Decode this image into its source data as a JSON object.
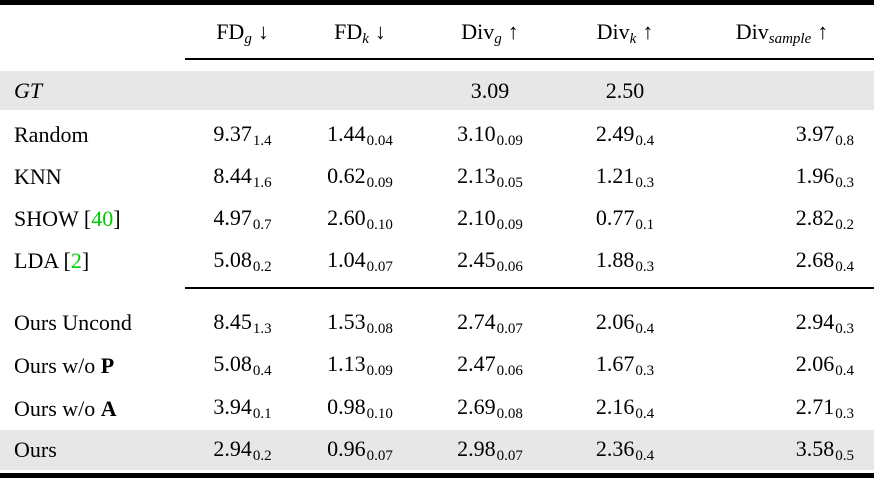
{
  "colors": {
    "citation_green": "#00cc00",
    "row_shade": "#e7e7e7",
    "rule_black": "#000000"
  },
  "table": {
    "columns": [
      {
        "name": "FD",
        "sub": "g",
        "arrow": "↓"
      },
      {
        "name": "FD",
        "sub": "k",
        "arrow": "↓"
      },
      {
        "name": "Div",
        "sub": "g",
        "arrow": "↑"
      },
      {
        "name": "Div",
        "sub": "k",
        "arrow": "↑"
      },
      {
        "name": "Div",
        "sub": "sample",
        "arrow": "↑"
      }
    ],
    "rows": [
      {
        "type": "data",
        "shaded": true,
        "label": [
          {
            "text": "GT",
            "style": "italic"
          }
        ],
        "values": [
          null,
          null,
          {
            "main": "3.09",
            "sub": ""
          },
          {
            "main": "2.50",
            "sub": ""
          },
          null
        ]
      },
      {
        "type": "data",
        "label": [
          {
            "text": "Random"
          }
        ],
        "values": [
          {
            "main": "9.37",
            "sub": "1.4"
          },
          {
            "main": "1.44",
            "sub": "0.04"
          },
          {
            "main": "3.10",
            "sub": "0.09"
          },
          {
            "main": "2.49",
            "sub": "0.4"
          },
          {
            "main": "3.97",
            "sub": "0.8"
          }
        ]
      },
      {
        "type": "data",
        "label": [
          {
            "text": "KNN"
          }
        ],
        "values": [
          {
            "main": "8.44",
            "sub": "1.6"
          },
          {
            "main": "0.62",
            "sub": "0.09"
          },
          {
            "main": "2.13",
            "sub": "0.05"
          },
          {
            "main": "1.21",
            "sub": "0.3"
          },
          {
            "main": "1.96",
            "sub": "0.3"
          }
        ]
      },
      {
        "type": "data",
        "label": [
          {
            "text": "SHOW ["
          },
          {
            "text": "40",
            "style": "cite"
          },
          {
            "text": "]"
          }
        ],
        "values": [
          {
            "main": "4.97",
            "sub": "0.7"
          },
          {
            "main": "2.60",
            "sub": "0.10"
          },
          {
            "main": "2.10",
            "sub": "0.09"
          },
          {
            "main": "0.77",
            "sub": "0.1"
          },
          {
            "main": "2.82",
            "sub": "0.2"
          }
        ]
      },
      {
        "type": "data",
        "label": [
          {
            "text": "LDA ["
          },
          {
            "text": "2",
            "style": "cite"
          },
          {
            "text": "]"
          }
        ],
        "values": [
          {
            "main": "5.08",
            "sub": "0.2"
          },
          {
            "main": "1.04",
            "sub": "0.07"
          },
          {
            "main": "2.45",
            "sub": "0.06"
          },
          {
            "main": "1.88",
            "sub": "0.3"
          },
          {
            "main": "2.68",
            "sub": "0.4"
          }
        ]
      },
      {
        "type": "midrule"
      },
      {
        "type": "data",
        "label": [
          {
            "text": "Ours Uncond"
          }
        ],
        "values": [
          {
            "main": "8.45",
            "sub": "1.3"
          },
          {
            "main": "1.53",
            "sub": "0.08"
          },
          {
            "main": "2.74",
            "sub": "0.07"
          },
          {
            "main": "2.06",
            "sub": "0.4"
          },
          {
            "main": "2.94",
            "sub": "0.3"
          }
        ]
      },
      {
        "type": "data",
        "label": [
          {
            "text": "Ours w/o "
          },
          {
            "text": "P",
            "style": "bold"
          }
        ],
        "values": [
          {
            "main": "5.08",
            "sub": "0.4"
          },
          {
            "main": "1.13",
            "sub": "0.09"
          },
          {
            "main": "2.47",
            "sub": "0.06"
          },
          {
            "main": "1.67",
            "sub": "0.3"
          },
          {
            "main": "2.06",
            "sub": "0.4"
          }
        ]
      },
      {
        "type": "data",
        "label": [
          {
            "text": "Ours w/o "
          },
          {
            "text": "A",
            "style": "bold"
          }
        ],
        "values": [
          {
            "main": "3.94",
            "sub": "0.1"
          },
          {
            "main": "0.98",
            "sub": "0.10"
          },
          {
            "main": "2.69",
            "sub": "0.08"
          },
          {
            "main": "2.16",
            "sub": "0.4"
          },
          {
            "main": "2.71",
            "sub": "0.3"
          }
        ]
      },
      {
        "type": "data",
        "shaded": true,
        "label": [
          {
            "text": "Ours"
          }
        ],
        "values": [
          {
            "main": "2.94",
            "sub": "0.2"
          },
          {
            "main": "0.96",
            "sub": "0.07"
          },
          {
            "main": "2.98",
            "sub": "0.07"
          },
          {
            "main": "2.36",
            "sub": "0.4"
          },
          {
            "main": "3.58",
            "sub": "0.5"
          }
        ]
      }
    ]
  }
}
